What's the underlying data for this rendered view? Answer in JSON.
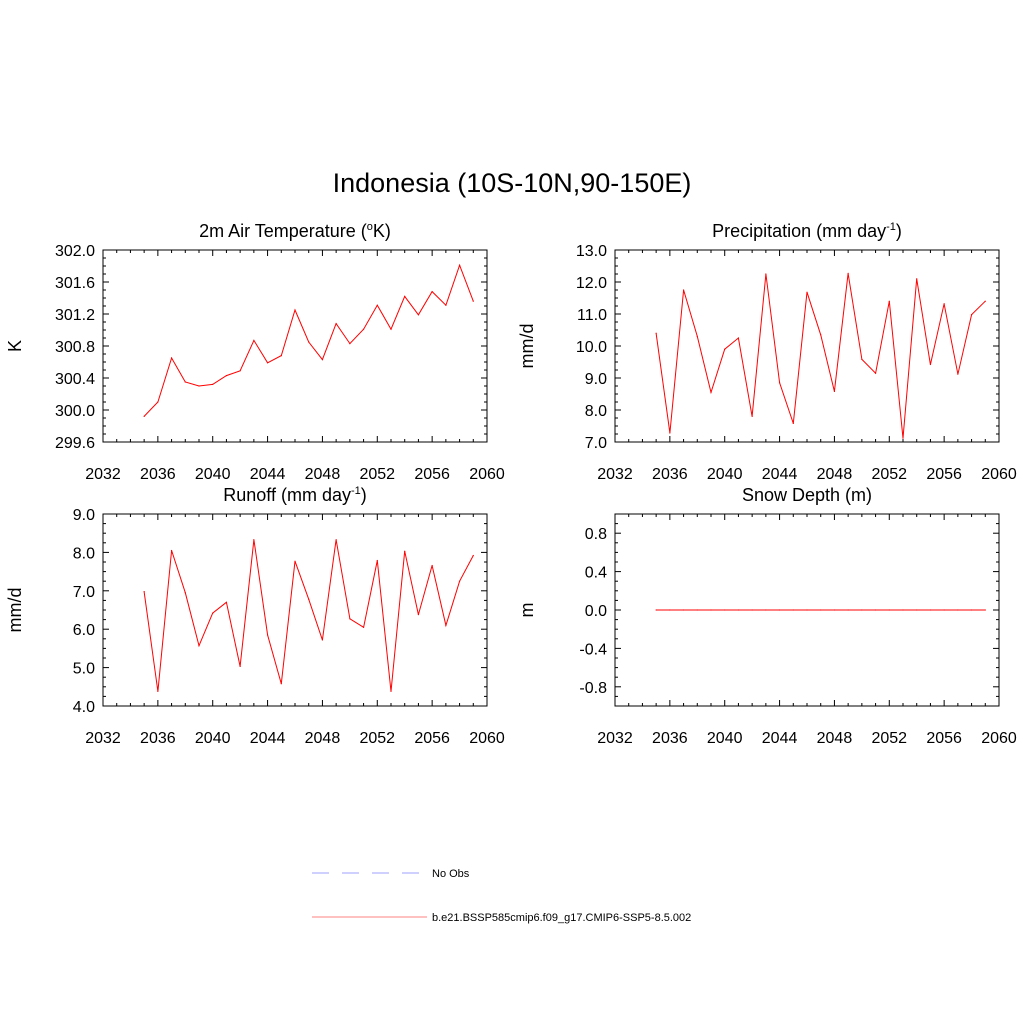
{
  "title": "Indonesia (10S-10N,90-150E)",
  "chart_data": [
    {
      "type": "line",
      "title": "2m Air Temperature (°K)",
      "title_parts": {
        "main": "2m Air Temperature (",
        "sup": "o",
        "after": "K)"
      },
      "ylabel": "K",
      "xlim": [
        2032,
        2060
      ],
      "ylim": [
        299.6,
        302.0
      ],
      "xticks": [
        2032,
        2036,
        2040,
        2044,
        2048,
        2052,
        2056,
        2060
      ],
      "yticks": [
        "299.6",
        "300.0",
        "300.4",
        "300.8",
        "301.2",
        "301.6",
        "302.0"
      ],
      "x": [
        2035,
        2036,
        2037,
        2038,
        2039,
        2040,
        2041,
        2042,
        2043,
        2044,
        2045,
        2046,
        2047,
        2048,
        2049,
        2050,
        2051,
        2052,
        2053,
        2054,
        2055,
        2056,
        2057,
        2058,
        2059
      ],
      "series": [
        {
          "name": "b.e21.BSSP585cmip6.f09_g17.CMIP6-SSP5-8.5.002",
          "values": [
            299.92,
            300.1,
            300.65,
            300.35,
            300.3,
            300.32,
            300.43,
            300.49,
            300.87,
            300.59,
            300.68,
            301.25,
            300.85,
            300.63,
            301.08,
            300.83,
            301.01,
            301.31,
            301.01,
            301.42,
            301.19,
            301.48,
            301.31,
            301.81,
            301.36
          ]
        }
      ]
    },
    {
      "type": "line",
      "title": "Precipitation (mm day-1)",
      "title_parts": {
        "main": "Precipitation (mm day",
        "sup": "-1",
        "after": ")"
      },
      "ylabel": "mm/d",
      "xlim": [
        2032,
        2060
      ],
      "ylim": [
        7.0,
        13.0
      ],
      "xticks": [
        2032,
        2036,
        2040,
        2044,
        2048,
        2052,
        2056,
        2060
      ],
      "yticks": [
        "7.0",
        "8.0",
        "9.0",
        "10.0",
        "11.0",
        "12.0",
        "13.0"
      ],
      "x": [
        2035,
        2036,
        2037,
        2038,
        2039,
        2040,
        2041,
        2042,
        2043,
        2044,
        2045,
        2046,
        2047,
        2048,
        2049,
        2050,
        2051,
        2052,
        2053,
        2054,
        2055,
        2056,
        2057,
        2058,
        2059
      ],
      "series": [
        {
          "name": "b.e21.BSSP585cmip6.f09_g17.CMIP6-SSP5-8.5.002",
          "values": [
            10.4,
            7.28,
            11.75,
            10.3,
            8.55,
            9.9,
            10.25,
            7.8,
            12.25,
            8.85,
            7.58,
            11.68,
            10.35,
            8.58,
            12.27,
            9.58,
            9.15,
            11.4,
            7.12,
            12.1,
            9.42,
            11.32,
            9.12,
            10.98,
            11.4
          ]
        }
      ]
    },
    {
      "type": "line",
      "title": "Runoff (mm day-1)",
      "title_parts": {
        "main": "Runoff (mm day",
        "sup": "-1",
        "after": ")"
      },
      "ylabel": "mm/d",
      "xlim": [
        2032,
        2060
      ],
      "ylim": [
        4.0,
        9.0
      ],
      "xticks": [
        2032,
        2036,
        2040,
        2044,
        2048,
        2052,
        2056,
        2060
      ],
      "yticks": [
        "4.0",
        "5.0",
        "6.0",
        "7.0",
        "8.0",
        "9.0"
      ],
      "x": [
        2035,
        2036,
        2037,
        2038,
        2039,
        2040,
        2041,
        2042,
        2043,
        2044,
        2045,
        2046,
        2047,
        2048,
        2049,
        2050,
        2051,
        2052,
        2053,
        2054,
        2055,
        2056,
        2057,
        2058,
        2059
      ],
      "series": [
        {
          "name": "b.e21.BSSP585cmip6.f09_g17.CMIP6-SSP5-8.5.002",
          "values": [
            6.98,
            4.38,
            8.05,
            6.95,
            5.57,
            6.42,
            6.7,
            5.03,
            8.33,
            5.85,
            4.58,
            7.77,
            6.78,
            5.72,
            8.33,
            6.27,
            6.05,
            7.79,
            4.38,
            8.03,
            6.38,
            7.66,
            6.1,
            7.25,
            7.92
          ]
        }
      ]
    },
    {
      "type": "line",
      "title": "Snow Depth (m)",
      "title_parts": {
        "main": "Snow Depth (m)",
        "sup": "",
        "after": ""
      },
      "ylabel": "m",
      "xlim": [
        2032,
        2060
      ],
      "ylim": [
        -1.0,
        1.0
      ],
      "xticks": [
        2032,
        2036,
        2040,
        2044,
        2048,
        2052,
        2056,
        2060
      ],
      "yticks": [
        "-0.8",
        "-0.4",
        "0.0",
        "0.4",
        "0.8"
      ],
      "x": [
        2035,
        2036,
        2037,
        2038,
        2039,
        2040,
        2041,
        2042,
        2043,
        2044,
        2045,
        2046,
        2047,
        2048,
        2049,
        2050,
        2051,
        2052,
        2053,
        2054,
        2055,
        2056,
        2057,
        2058,
        2059
      ],
      "series": [
        {
          "name": "b.e21.BSSP585cmip6.f09_g17.CMIP6-SSP5-8.5.002",
          "values": [
            0,
            0,
            0,
            0,
            0,
            0,
            0,
            0,
            0,
            0,
            0,
            0,
            0,
            0,
            0,
            0,
            0,
            0,
            0,
            0,
            0,
            0,
            0,
            0,
            0
          ]
        }
      ]
    }
  ],
  "legend": {
    "items": [
      {
        "label": "No Obs",
        "color": "#a0a0ff",
        "dashed": true
      },
      {
        "label": "b.e21.BSSP585cmip6.f09_g17.CMIP6-SSP5-8.5.002",
        "color": "#ff8080",
        "dashed": false
      }
    ]
  },
  "colors": {
    "series_line": "#ff0000",
    "axis": "#000000"
  }
}
